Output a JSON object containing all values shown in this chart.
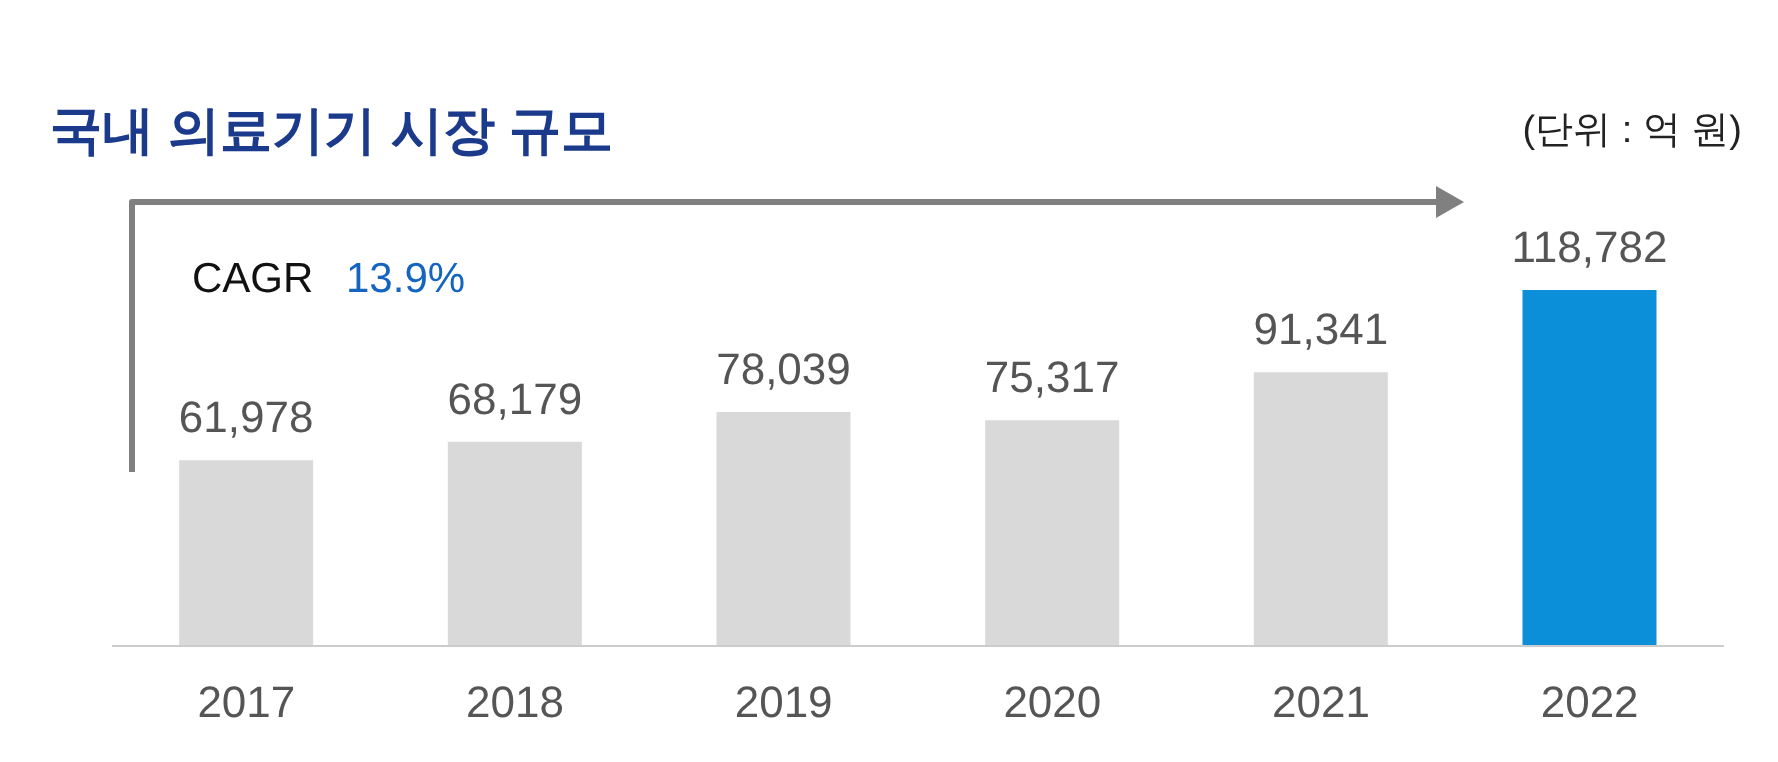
{
  "chart_data": {
    "type": "bar",
    "title": "국내 의료기기 시장 규모",
    "categories": [
      "2017",
      "2018",
      "2019",
      "2020",
      "2021",
      "2022"
    ],
    "values": [
      61978,
      68179,
      78039,
      75317,
      91341,
      118782
    ],
    "value_labels": [
      "61,978",
      "68,179",
      "78,039",
      "75,317",
      "91,341",
      "118,782"
    ],
    "colors": [
      "#d9d9d9",
      "#d9d9d9",
      "#d9d9d9",
      "#d9d9d9",
      "#d9d9d9",
      "#0a8fd8"
    ],
    "annotations": [
      "(단위 : 억 원)",
      "CAGR",
      "13.9%"
    ],
    "data_labels": false
  }
}
